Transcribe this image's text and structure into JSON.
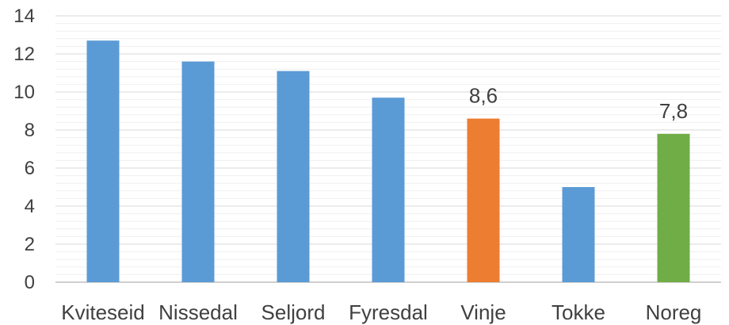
{
  "chart_data": {
    "type": "bar",
    "categories": [
      "Kviteseid",
      "Nissedal",
      "Seljord",
      "Fyresdal",
      "Vinje",
      "Tokke",
      "Noreg"
    ],
    "values": [
      12.7,
      11.6,
      11.1,
      9.7,
      8.6,
      5.0,
      7.8
    ],
    "colors": [
      "#5B9BD5",
      "#5B9BD5",
      "#5B9BD5",
      "#5B9BD5",
      "#ED7D31",
      "#5B9BD5",
      "#70AD47"
    ],
    "data_labels": [
      "",
      "",
      "",
      "",
      "8,6",
      "",
      "7,8"
    ],
    "yticks": [
      "0",
      "2",
      "4",
      "6",
      "8",
      "10",
      "12",
      "14"
    ],
    "ylim": [
      0,
      14
    ],
    "minor_grid_step": 0.4,
    "grid": true,
    "legend": "none",
    "title": "",
    "xlabel": "",
    "ylabel": ""
  }
}
